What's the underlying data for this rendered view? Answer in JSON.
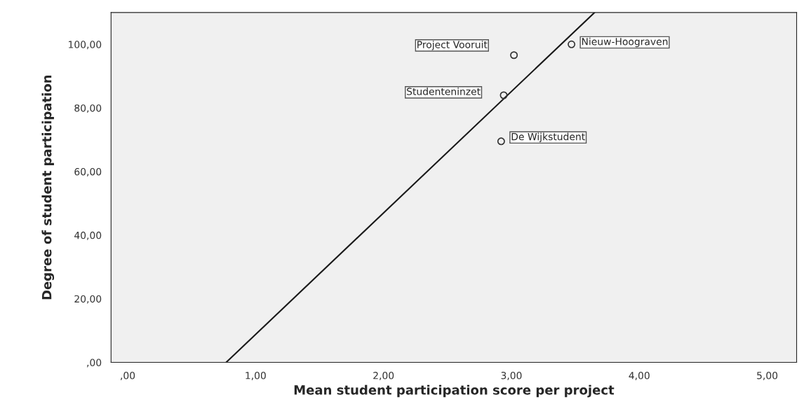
{
  "chart_data": {
    "type": "scatter",
    "xlabel": "Mean student participation score per project",
    "ylabel": "Degree of student participation",
    "x": [
      3.47,
      3.02,
      2.94,
      2.92
    ],
    "series": [
      {
        "color": "#333333",
        "marker": "circle",
        "values": [
          100,
          96.6,
          84.0,
          69.5
        ]
      },
      {
        "type": "line",
        "color": "#1a1a1a",
        "x": [
          0.77,
          3.65
        ],
        "values": [
          0,
          110
        ]
      }
    ],
    "annotations": [
      {
        "text": "Nieuw-Hoograven",
        "x": 3.47,
        "y": 100
      },
      {
        "text": "Project Vooruit",
        "x": 3.02,
        "y": 96.6
      },
      {
        "text": "Studenteninzet",
        "x": 2.94,
        "y": 84.0
      },
      {
        "text": "De Wijkstudent",
        "x": 2.92,
        "y": 69.5
      }
    ],
    "xlim": [
      -0.13,
      5.23
    ],
    "ylim": [
      0,
      110
    ],
    "xticks": [
      {
        "value": 0,
        "label": ",00"
      },
      {
        "value": 1,
        "label": "1,00"
      },
      {
        "value": 2,
        "label": "2,00"
      },
      {
        "value": 3,
        "label": "3,00"
      },
      {
        "value": 4,
        "label": "4,00"
      },
      {
        "value": 5,
        "label": "5,00"
      }
    ],
    "yticks": [
      {
        "value": 0,
        "label": ",00"
      },
      {
        "value": 20,
        "label": "20,00"
      },
      {
        "value": 40,
        "label": "40,00"
      },
      {
        "value": 60,
        "label": "60,00"
      },
      {
        "value": 80,
        "label": "80,00"
      },
      {
        "value": 100,
        "label": "100,00"
      }
    ],
    "grid": false,
    "legend": false
  }
}
